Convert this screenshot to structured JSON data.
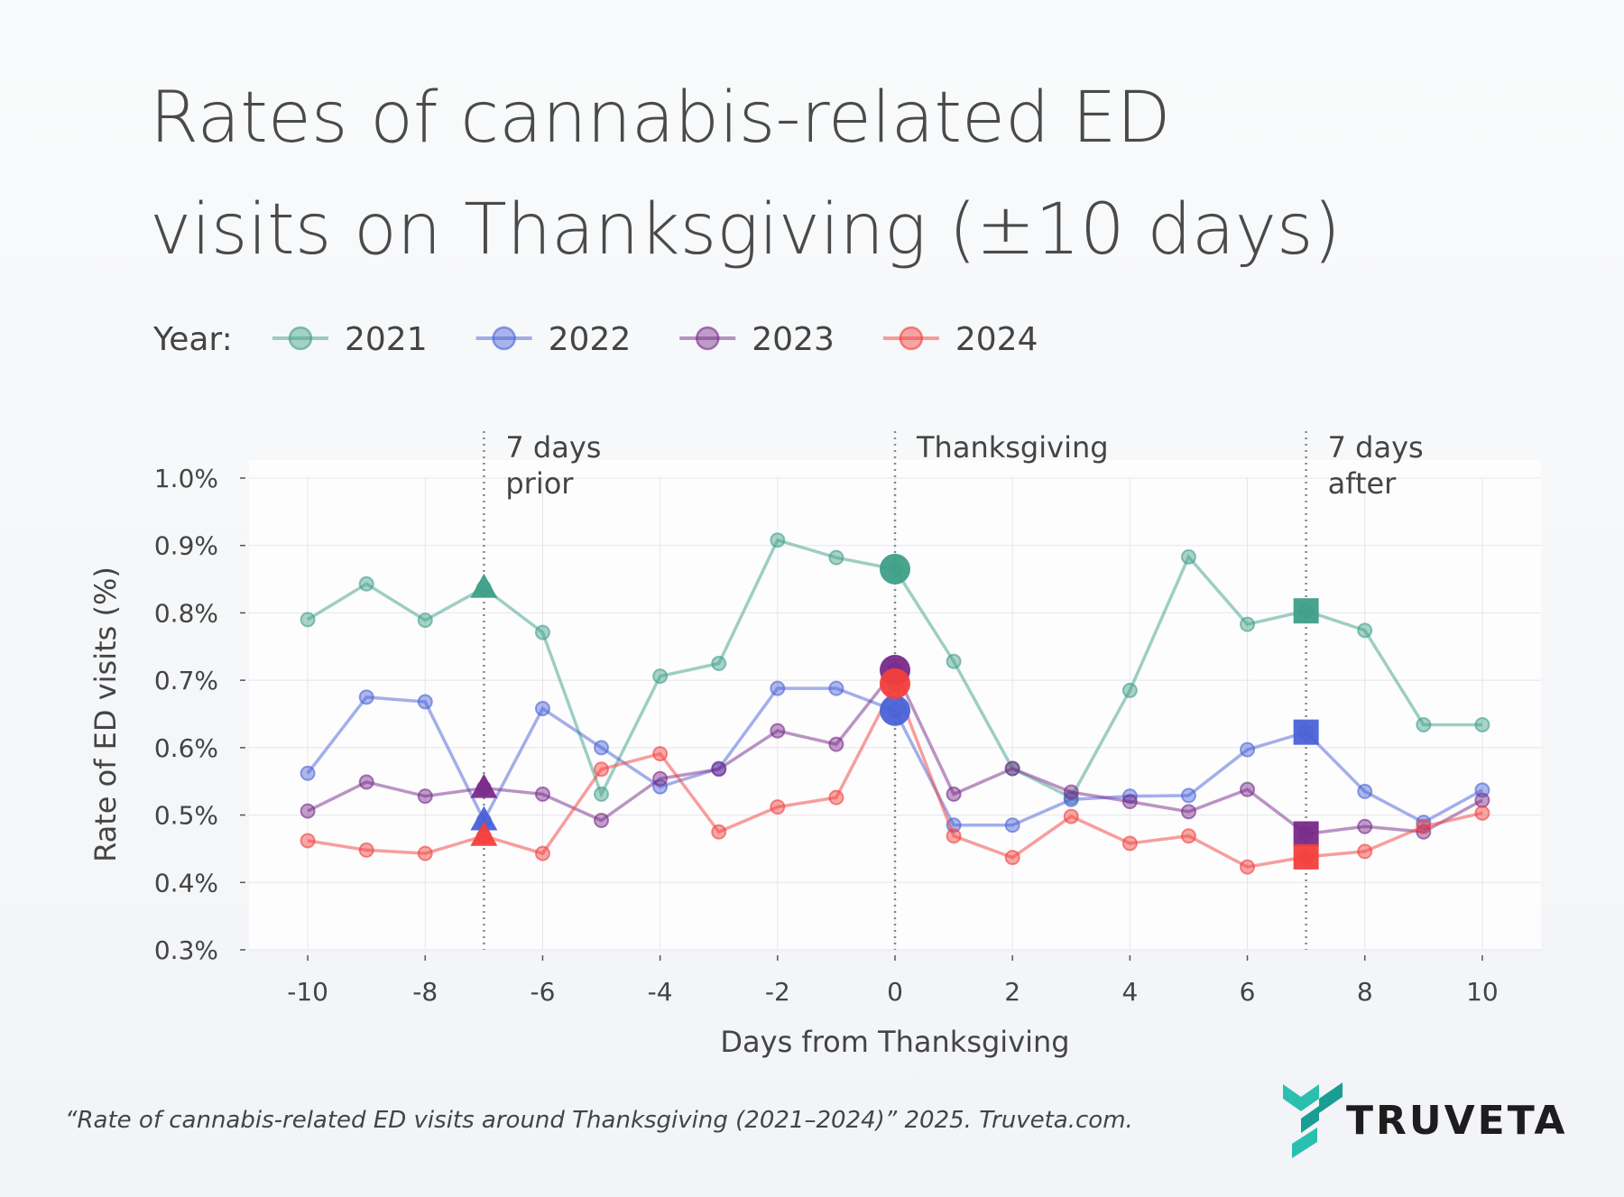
{
  "chart_data": {
    "type": "line",
    "title": [
      "Rates of cannabis-related ED",
      "visits on Thanksgiving (±10 days)"
    ],
    "legend_title": "Year:",
    "x_label": "Days from Thanksgiving",
    "y_label": "Rate of ED visits (%)",
    "x": [
      -10,
      -9,
      -8,
      -7,
      -6,
      -5,
      -4,
      -3,
      -2,
      -1,
      0,
      1,
      2,
      3,
      4,
      5,
      6,
      7,
      8,
      9,
      10
    ],
    "series": [
      {
        "name": "2021",
        "color": "#3f9f88",
        "values": [
          0.79,
          0.843,
          0.789,
          0.837,
          0.771,
          0.531,
          0.706,
          0.725,
          0.908,
          0.882,
          0.865,
          0.728,
          0.569,
          0.526,
          0.685,
          0.883,
          0.783,
          0.803,
          0.774,
          0.634,
          0.634
        ]
      },
      {
        "name": "2022",
        "color": "#4a62d6",
        "values": [
          0.562,
          0.675,
          0.668,
          0.492,
          0.658,
          0.6,
          0.542,
          0.569,
          0.688,
          0.688,
          0.655,
          0.485,
          0.485,
          0.523,
          0.528,
          0.529,
          0.597,
          0.623,
          0.535,
          0.489,
          0.537
        ]
      },
      {
        "name": "2023",
        "color": "#782a8a",
        "values": [
          0.506,
          0.549,
          0.528,
          0.54,
          0.531,
          0.492,
          0.554,
          0.568,
          0.625,
          0.605,
          0.715,
          0.531,
          0.569,
          0.534,
          0.52,
          0.505,
          0.538,
          0.472,
          0.483,
          0.475,
          0.522
        ]
      },
      {
        "name": "2024",
        "color": "#f23f3c",
        "values": [
          0.462,
          0.448,
          0.443,
          0.469,
          0.443,
          0.568,
          0.591,
          0.475,
          0.512,
          0.526,
          0.695,
          0.469,
          0.437,
          0.498,
          0.458,
          0.469,
          0.423,
          0.438,
          0.446,
          0.483,
          0.503
        ]
      }
    ],
    "highlights": [
      {
        "x": -7,
        "shape": "triangle"
      },
      {
        "x": 0,
        "shape": "circle"
      },
      {
        "x": 7,
        "shape": "square"
      }
    ],
    "annotations": [
      {
        "x": -7,
        "lines": [
          "7 days",
          "prior"
        ]
      },
      {
        "x": 0,
        "lines": [
          "Thanksgiving"
        ]
      },
      {
        "x": 7,
        "lines": [
          "7 days",
          "after"
        ]
      }
    ],
    "xlim": [
      -11,
      11
    ],
    "ylim": [
      0.3,
      1.0
    ],
    "xticks": [
      -10,
      -8,
      -6,
      -4,
      -2,
      0,
      2,
      4,
      6,
      8,
      10
    ],
    "yticks": [
      {
        "value": 0.3,
        "label": "0.3%"
      },
      {
        "value": 0.4,
        "label": "0.4%"
      },
      {
        "value": 0.5,
        "label": "0.5%"
      },
      {
        "value": 0.6,
        "label": "0.6%"
      },
      {
        "value": 0.7,
        "label": "0.7%"
      },
      {
        "value": 0.8,
        "label": "0.8%"
      },
      {
        "value": 0.9,
        "label": "0.9%"
      },
      {
        "value": 1.0,
        "label": "1.0%"
      }
    ],
    "grid": true
  },
  "footer": {
    "citation": "“Rate of cannabis-related ED visits around Thanksgiving (2021–2024)” 2025. Truveta.com.",
    "logo": "TRUVETA"
  }
}
